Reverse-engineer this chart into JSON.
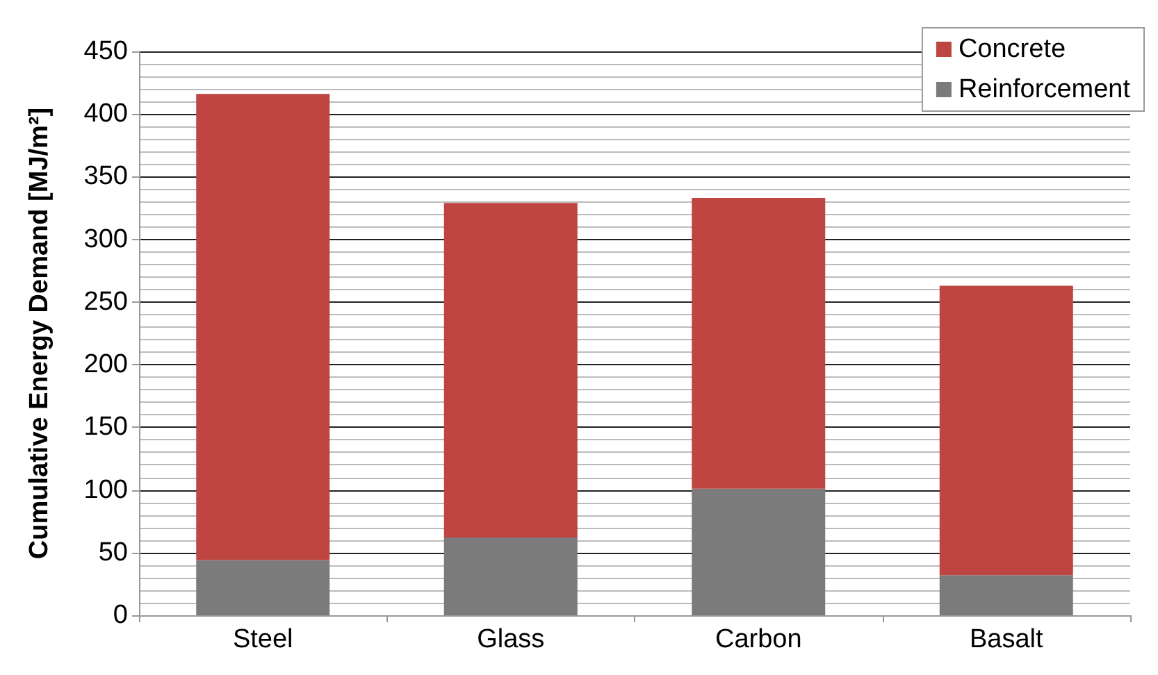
{
  "chart_data": {
    "type": "bar",
    "ylabel": "Cumulative Energy Demand [MJ/m²]",
    "categories": [
      "Steel",
      "Glass",
      "Carbon",
      "Basalt"
    ],
    "series": [
      {
        "name": "Reinforcement",
        "color": "#7b7b7b",
        "values": [
          44,
          62,
          101,
          32
        ]
      },
      {
        "name": "Concrete",
        "color": "#be4541",
        "values": [
          372,
          267,
          232,
          231
        ]
      }
    ],
    "stacked": true,
    "ylim": [
      0,
      450
    ],
    "yticks": [
      0,
      50,
      100,
      150,
      200,
      250,
      300,
      350,
      400,
      450
    ],
    "grid": "y",
    "legend": "top right"
  }
}
